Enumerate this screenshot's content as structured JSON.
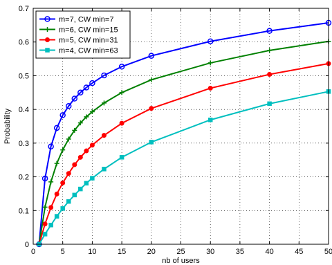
{
  "chart_data": {
    "type": "line",
    "title": "",
    "xlabel": "nb of users",
    "ylabel": "Probability",
    "xlim": [
      0,
      50
    ],
    "ylim": [
      0,
      0.7
    ],
    "xticks": [
      "0",
      "5",
      "10",
      "15",
      "20",
      "25",
      "30",
      "35",
      "40",
      "45",
      "50"
    ],
    "yticks": [
      "0",
      "0.1",
      "0.2",
      "0.3",
      "0.4",
      "0.5",
      "0.6",
      "0.7"
    ],
    "grid": true,
    "legend_position": "top-left",
    "x": [
      1,
      2,
      3,
      4,
      5,
      6,
      7,
      8,
      9,
      10,
      12,
      15,
      20,
      30,
      40,
      50
    ],
    "series": [
      {
        "name": "m=7, CW min=7",
        "color": "#0000ff",
        "marker": "open-circle",
        "values": [
          0.0,
          0.195,
          0.29,
          0.345,
          0.383,
          0.41,
          0.432,
          0.45,
          0.465,
          0.478,
          0.501,
          0.527,
          0.559,
          0.602,
          0.633,
          0.657
        ]
      },
      {
        "name": "m=6, CW min=15",
        "color": "#008000",
        "marker": "plus",
        "values": [
          0.0,
          0.11,
          0.185,
          0.24,
          0.28,
          0.312,
          0.338,
          0.36,
          0.378,
          0.393,
          0.419,
          0.45,
          0.488,
          0.538,
          0.575,
          0.602
        ]
      },
      {
        "name": "m=5, CW min=31",
        "color": "#ff0000",
        "marker": "filled-circle",
        "values": [
          0.0,
          0.06,
          0.109,
          0.149,
          0.182,
          0.21,
          0.236,
          0.258,
          0.277,
          0.294,
          0.323,
          0.359,
          0.403,
          0.463,
          0.504,
          0.536
        ]
      },
      {
        "name": "m=4, CW min=63",
        "color": "#00bfbf",
        "marker": "filled-square",
        "values": [
          0.0,
          0.03,
          0.057,
          0.083,
          0.106,
          0.127,
          0.146,
          0.164,
          0.181,
          0.196,
          0.223,
          0.258,
          0.303,
          0.369,
          0.417,
          0.453
        ]
      }
    ]
  }
}
